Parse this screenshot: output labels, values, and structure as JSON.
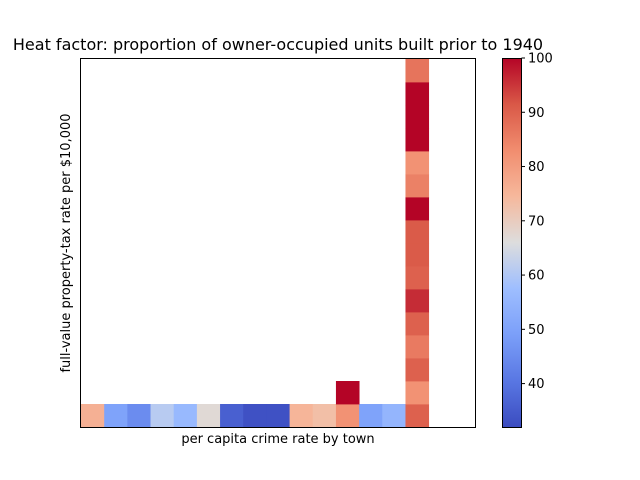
{
  "chart_data": {
    "type": "heatmap",
    "title": "Heat factor: proportion of owner-occupied units built prior to 1940",
    "xlabel": "per capita crime rate by town",
    "ylabel": "full-value property-tax rate per $10,000",
    "colormap": "coolwarm",
    "color_range": [
      32,
      100
    ],
    "colorbar_ticks": [
      40,
      50,
      60,
      70,
      80,
      90,
      100
    ],
    "x_ticks_shown": false,
    "y_ticks_shown": false,
    "n_cols": 17,
    "n_rows": 16,
    "cells": [
      {
        "col": 0,
        "row": 0,
        "value": 76
      },
      {
        "col": 1,
        "row": 0,
        "value": 50
      },
      {
        "col": 2,
        "row": 0,
        "value": 45
      },
      {
        "col": 3,
        "row": 0,
        "value": 61
      },
      {
        "col": 4,
        "row": 0,
        "value": 56
      },
      {
        "col": 5,
        "row": 0,
        "value": 67
      },
      {
        "col": 6,
        "row": 0,
        "value": 36
      },
      {
        "col": 7,
        "row": 0,
        "value": 33
      },
      {
        "col": 8,
        "row": 0,
        "value": 33
      },
      {
        "col": 9,
        "row": 0,
        "value": 75
      },
      {
        "col": 10,
        "row": 0,
        "value": 73
      },
      {
        "col": 11,
        "row": 0,
        "value": 82
      },
      {
        "col": 12,
        "row": 0,
        "value": 50
      },
      {
        "col": 13,
        "row": 0,
        "value": 55
      },
      {
        "col": 14,
        "row": 0,
        "value": 90
      },
      {
        "col": 11,
        "row": 1,
        "value": 100
      },
      {
        "col": 14,
        "row": 1,
        "value": 82
      },
      {
        "col": 14,
        "row": 2,
        "value": 90
      },
      {
        "col": 14,
        "row": 3,
        "value": 86
      },
      {
        "col": 14,
        "row": 4,
        "value": 90
      },
      {
        "col": 14,
        "row": 5,
        "value": 96
      },
      {
        "col": 14,
        "row": 6,
        "value": 90
      },
      {
        "col": 14,
        "row": 7,
        "value": 91
      },
      {
        "col": 14,
        "row": 8,
        "value": 91
      },
      {
        "col": 14,
        "row": 9,
        "value": 100
      },
      {
        "col": 14,
        "row": 10,
        "value": 85
      },
      {
        "col": 14,
        "row": 11,
        "value": 82
      },
      {
        "col": 14,
        "row": 12,
        "value": 100
      },
      {
        "col": 14,
        "row": 13,
        "value": 100
      },
      {
        "col": 14,
        "row": 14,
        "value": 100
      },
      {
        "col": 14,
        "row": 15,
        "value": 87
      }
    ]
  }
}
